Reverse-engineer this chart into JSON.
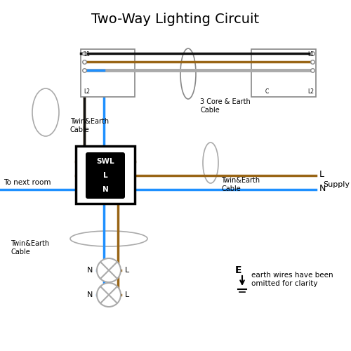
{
  "title": "Two-Way Lighting Circuit",
  "title_fontsize": 14,
  "bg_color": "#ffffff",
  "wire_brown": "#996515",
  "wire_blue": "#1e90ff",
  "wire_black": "#111111",
  "wire_gray": "#aaaaaa",
  "lw_main": 2.5,
  "lw_thin": 1.5,
  "supply_label_L": "L",
  "supply_label_N": "N",
  "supply_label": "Supply",
  "label_twin_earth": "Twin&Earth\nCable",
  "label_3core": "3 Core & Earth\nCable",
  "label_next_room": "To next room",
  "label_earth": "E",
  "label_earth_note": "earth wires have been\nomitted for clarity"
}
